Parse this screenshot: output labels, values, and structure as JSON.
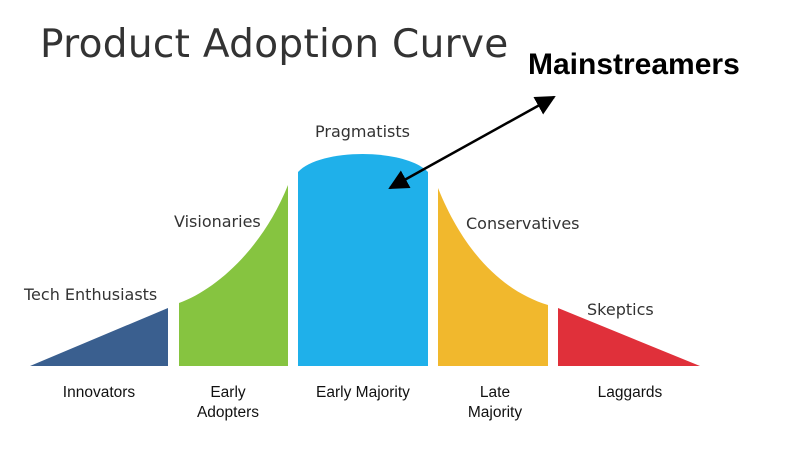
{
  "title": "Product Adoption Curve",
  "callout": "Mainstreamers",
  "segments": [
    {
      "label": "Tech Enthusiasts",
      "category": "Innovators",
      "color": "#3a5f8f"
    },
    {
      "label": "Visionaries",
      "category": "Early Adopters",
      "color": "#86c440"
    },
    {
      "label": "Pragmatists",
      "category": "Early Majority",
      "color": "#1fb0ea"
    },
    {
      "label": "Conservatives",
      "category": "Late Majority",
      "color": "#f1b82d"
    },
    {
      "label": "Skeptics",
      "category": "Laggards",
      "color": "#e0303a"
    }
  ]
}
